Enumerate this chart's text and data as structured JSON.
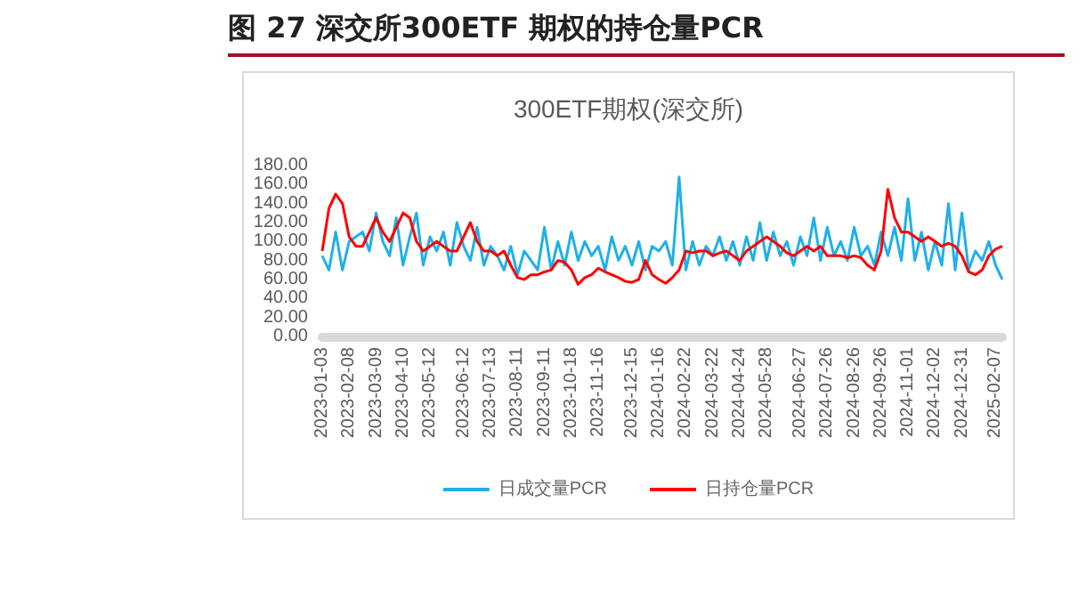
{
  "chart_data": {
    "type": "line",
    "title": "图 27 深交所300ETF 期权的持仓量PCR",
    "subtitle": "300ETF期权(深交所)",
    "categories": [
      "2023-01-03",
      null,
      null,
      null,
      "2023-02-08",
      null,
      null,
      null,
      "2023-03-09",
      null,
      null,
      null,
      "2023-04-10",
      null,
      null,
      null,
      "2023-05-12",
      null,
      null,
      null,
      null,
      "2023-06-12",
      null,
      null,
      null,
      "2023-07-13",
      null,
      null,
      null,
      "2023-08-11",
      null,
      null,
      null,
      "2023-09-11",
      null,
      null,
      null,
      "2023-10-18",
      null,
      null,
      null,
      "2023-11-16",
      null,
      null,
      null,
      null,
      "2023-12-15",
      null,
      null,
      null,
      "2024-01-16",
      null,
      null,
      null,
      "2024-02-22",
      null,
      null,
      null,
      "2024-03-22",
      null,
      null,
      null,
      "2024-04-24",
      null,
      null,
      null,
      "2024-05-28",
      null,
      null,
      null,
      null,
      "2024-06-27",
      null,
      null,
      null,
      "2024-07-26",
      null,
      null,
      null,
      "2024-08-26",
      null,
      null,
      null,
      "2024-09-26",
      null,
      null,
      null,
      "2024-11-01",
      null,
      null,
      null,
      "2024-12-02",
      null,
      null,
      null,
      "2024-12-31",
      null,
      null,
      null,
      null,
      "2025-02-07",
      null
    ],
    "series": [
      {
        "name": "日成交量PCR",
        "color": "#1fb0e8",
        "values": [
          85,
          70,
          110,
          70,
          100,
          105,
          110,
          90,
          130,
          100,
          85,
          125,
          75,
          105,
          130,
          75,
          105,
          90,
          110,
          75,
          120,
          95,
          80,
          115,
          75,
          95,
          85,
          70,
          95,
          65,
          90,
          80,
          70,
          115,
          70,
          100,
          75,
          110,
          80,
          100,
          85,
          95,
          70,
          105,
          80,
          95,
          75,
          100,
          70,
          95,
          90,
          100,
          75,
          168,
          70,
          100,
          75,
          95,
          85,
          105,
          80,
          100,
          75,
          105,
          80,
          120,
          80,
          110,
          85,
          100,
          75,
          105,
          85,
          125,
          80,
          115,
          85,
          100,
          80,
          115,
          85,
          95,
          75,
          110,
          85,
          115,
          80,
          145,
          80,
          110,
          70,
          100,
          75,
          140,
          70,
          130,
          70,
          90,
          80,
          100,
          75,
          60
        ]
      },
      {
        "name": "日持仓量PCR",
        "color": "#ff0000",
        "values": [
          90,
          135,
          150,
          140,
          105,
          95,
          95,
          110,
          125,
          110,
          100,
          115,
          130,
          125,
          100,
          90,
          95,
          100,
          95,
          90,
          90,
          105,
          120,
          100,
          90,
          90,
          85,
          90,
          75,
          62,
          60,
          65,
          65,
          68,
          70,
          80,
          78,
          70,
          55,
          62,
          65,
          72,
          68,
          65,
          62,
          58,
          57,
          60,
          80,
          65,
          60,
          56,
          62,
          70,
          90,
          88,
          90,
          90,
          85,
          88,
          90,
          85,
          80,
          90,
          95,
          100,
          105,
          100,
          95,
          88,
          85,
          90,
          95,
          90,
          95,
          85,
          85,
          85,
          83,
          85,
          83,
          75,
          70,
          90,
          155,
          125,
          110,
          110,
          105,
          100,
          105,
          100,
          95,
          98,
          95,
          85,
          68,
          65,
          70,
          85,
          92,
          95
        ]
      }
    ],
    "ylim": [
      0,
      180
    ],
    "yticks": [
      {
        "value": 0,
        "label": "0.00"
      },
      {
        "value": 20,
        "label": "20.00"
      },
      {
        "value": 40,
        "label": "40.00"
      },
      {
        "value": 60,
        "label": "60.00"
      },
      {
        "value": 80,
        "label": "80.00"
      },
      {
        "value": 100,
        "label": "100.00"
      },
      {
        "value": 120,
        "label": "120.00"
      },
      {
        "value": 140,
        "label": "140.00"
      },
      {
        "value": 160,
        "label": "160.00"
      },
      {
        "value": 180,
        "label": "180.00"
      }
    ],
    "grid": false,
    "legend": "bottom",
    "marker": "none",
    "line_style": "solid"
  }
}
